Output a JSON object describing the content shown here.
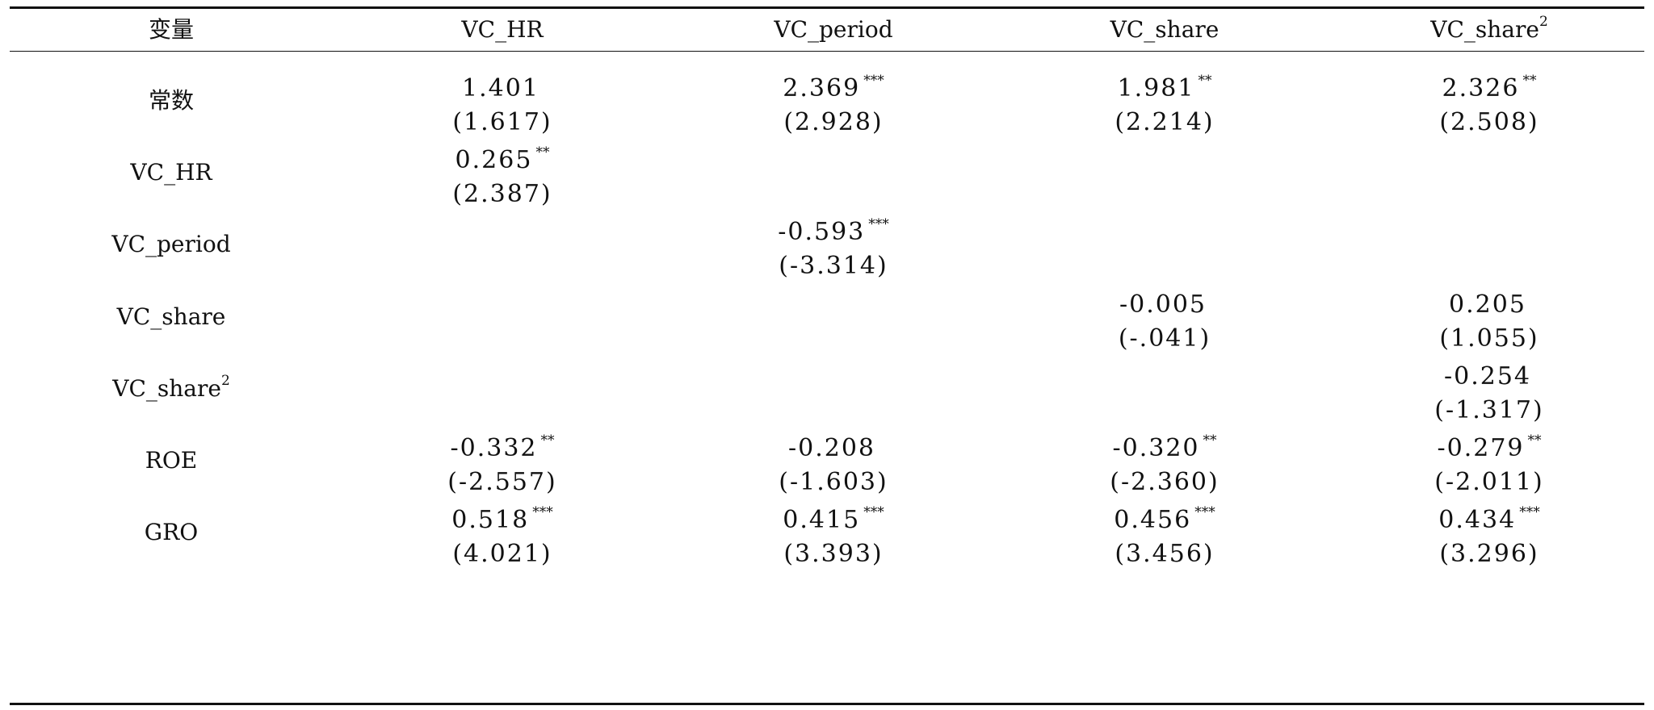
{
  "headers": {
    "var": "变量",
    "col1": "VC_HR",
    "col2": "VC_period",
    "col3": "VC_share",
    "col4_base": "VC_share",
    "col4_sup": "2"
  },
  "rows": [
    {
      "label": "常数",
      "cells": [
        {
          "v": "1.401",
          "s": "",
          "t": "(1.617)"
        },
        {
          "v": "2.369",
          "s": "***",
          "t": "(2.928)"
        },
        {
          "v": "1.981",
          "s": "**",
          "t": "(2.214)"
        },
        {
          "v": "2.326",
          "s": "**",
          "t": "(2.508)"
        }
      ]
    },
    {
      "label": "VC_HR",
      "cells": [
        {
          "v": "0.265",
          "s": "**",
          "t": "(2.387)"
        },
        {
          "v": "",
          "s": "",
          "t": ""
        },
        {
          "v": "",
          "s": "",
          "t": ""
        },
        {
          "v": "",
          "s": "",
          "t": ""
        }
      ]
    },
    {
      "label": "VC_period",
      "cells": [
        {
          "v": "",
          "s": "",
          "t": ""
        },
        {
          "v": "-0.593",
          "s": "***",
          "t": "(-3.314)"
        },
        {
          "v": "",
          "s": "",
          "t": ""
        },
        {
          "v": "",
          "s": "",
          "t": ""
        }
      ]
    },
    {
      "label": "VC_share",
      "cells": [
        {
          "v": "",
          "s": "",
          "t": ""
        },
        {
          "v": "",
          "s": "",
          "t": ""
        },
        {
          "v": "-0.005",
          "s": "",
          "t": "(-.041)"
        },
        {
          "v": "0.205",
          "s": "",
          "t": "(1.055)"
        }
      ]
    },
    {
      "label": "VC_share",
      "label_sup": "2",
      "cells": [
        {
          "v": "",
          "s": "",
          "t": ""
        },
        {
          "v": "",
          "s": "",
          "t": ""
        },
        {
          "v": "",
          "s": "",
          "t": ""
        },
        {
          "v": "-0.254",
          "s": "",
          "t": "(-1.317)"
        }
      ]
    },
    {
      "label": "ROE",
      "cells": [
        {
          "v": "-0.332",
          "s": "**",
          "t": "(-2.557)"
        },
        {
          "v": "-0.208",
          "s": "",
          "t": "(-1.603)"
        },
        {
          "v": "-0.320",
          "s": "**",
          "t": "(-2.360)"
        },
        {
          "v": "-0.279",
          "s": "**",
          "t": "(-2.011)"
        }
      ]
    },
    {
      "label": "GRO",
      "cells": [
        {
          "v": "0.518",
          "s": "***",
          "t": "(4.021)"
        },
        {
          "v": "0.415",
          "s": "***",
          "t": "(3.393)"
        },
        {
          "v": "0.456",
          "s": "***",
          "t": "(3.456)"
        },
        {
          "v": "0.434",
          "s": "***",
          "t": "(3.296)"
        }
      ]
    }
  ]
}
